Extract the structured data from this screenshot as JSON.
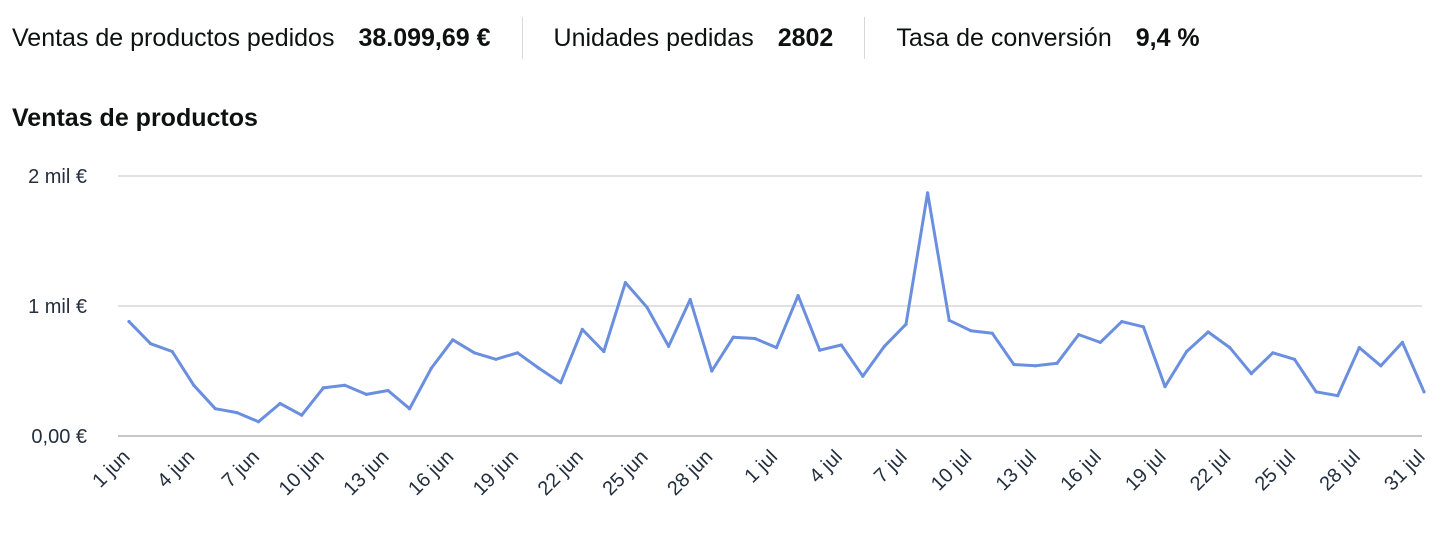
{
  "metrics": {
    "sales_label": "Ventas de productos pedidos",
    "sales_value": "38.099,69 €",
    "units_label": "Unidades pedidas",
    "units_value": "2802",
    "conversion_label": "Tasa de conversión",
    "conversion_value": "9,4 %"
  },
  "colors": {
    "line": "#6b8fdf",
    "grid": "#d5d9d9",
    "axis": "#c8c8c8"
  },
  "chart_data": {
    "type": "line",
    "title": "Ventas de productos",
    "xlabel": "",
    "ylabel": "",
    "grid": true,
    "ylim": [
      0,
      2000
    ],
    "y_ticks": [
      {
        "value": 0,
        "label": "0,00 €"
      },
      {
        "value": 1000,
        "label": "1 mil €"
      },
      {
        "value": 2000,
        "label": "2 mil €"
      }
    ],
    "x_ticks": [
      {
        "index": 0,
        "label": "1 jun"
      },
      {
        "index": 3,
        "label": "4 jun"
      },
      {
        "index": 6,
        "label": "7 jun"
      },
      {
        "index": 9,
        "label": "10 jun"
      },
      {
        "index": 12,
        "label": "13 jun"
      },
      {
        "index": 15,
        "label": "16 jun"
      },
      {
        "index": 18,
        "label": "19 jun"
      },
      {
        "index": 21,
        "label": "22 jun"
      },
      {
        "index": 24,
        "label": "25 jun"
      },
      {
        "index": 27,
        "label": "28 jun"
      },
      {
        "index": 30,
        "label": "1 jul"
      },
      {
        "index": 33,
        "label": "4 jul"
      },
      {
        "index": 36,
        "label": "7 jul"
      },
      {
        "index": 39,
        "label": "10 jul"
      },
      {
        "index": 42,
        "label": "13 jul"
      },
      {
        "index": 45,
        "label": "16 jul"
      },
      {
        "index": 48,
        "label": "19 jul"
      },
      {
        "index": 51,
        "label": "22 jul"
      },
      {
        "index": 54,
        "label": "25 jul"
      },
      {
        "index": 57,
        "label": "28 jul"
      },
      {
        "index": 60,
        "label": "31 jul"
      }
    ],
    "series": [
      {
        "values": [
          880,
          710,
          650,
          390,
          210,
          180,
          110,
          250,
          160,
          370,
          390,
          320,
          350,
          210,
          520,
          740,
          640,
          590,
          640,
          520,
          410,
          820,
          650,
          1180,
          990,
          690,
          1050,
          500,
          760,
          750,
          680,
          1080,
          660,
          700,
          460,
          690,
          860,
          1870,
          890,
          810,
          790,
          550,
          540,
          560,
          780,
          720,
          880,
          840,
          380,
          650,
          800,
          680,
          480,
          640,
          590,
          340,
          310,
          680,
          540,
          720,
          340
        ]
      }
    ]
  }
}
